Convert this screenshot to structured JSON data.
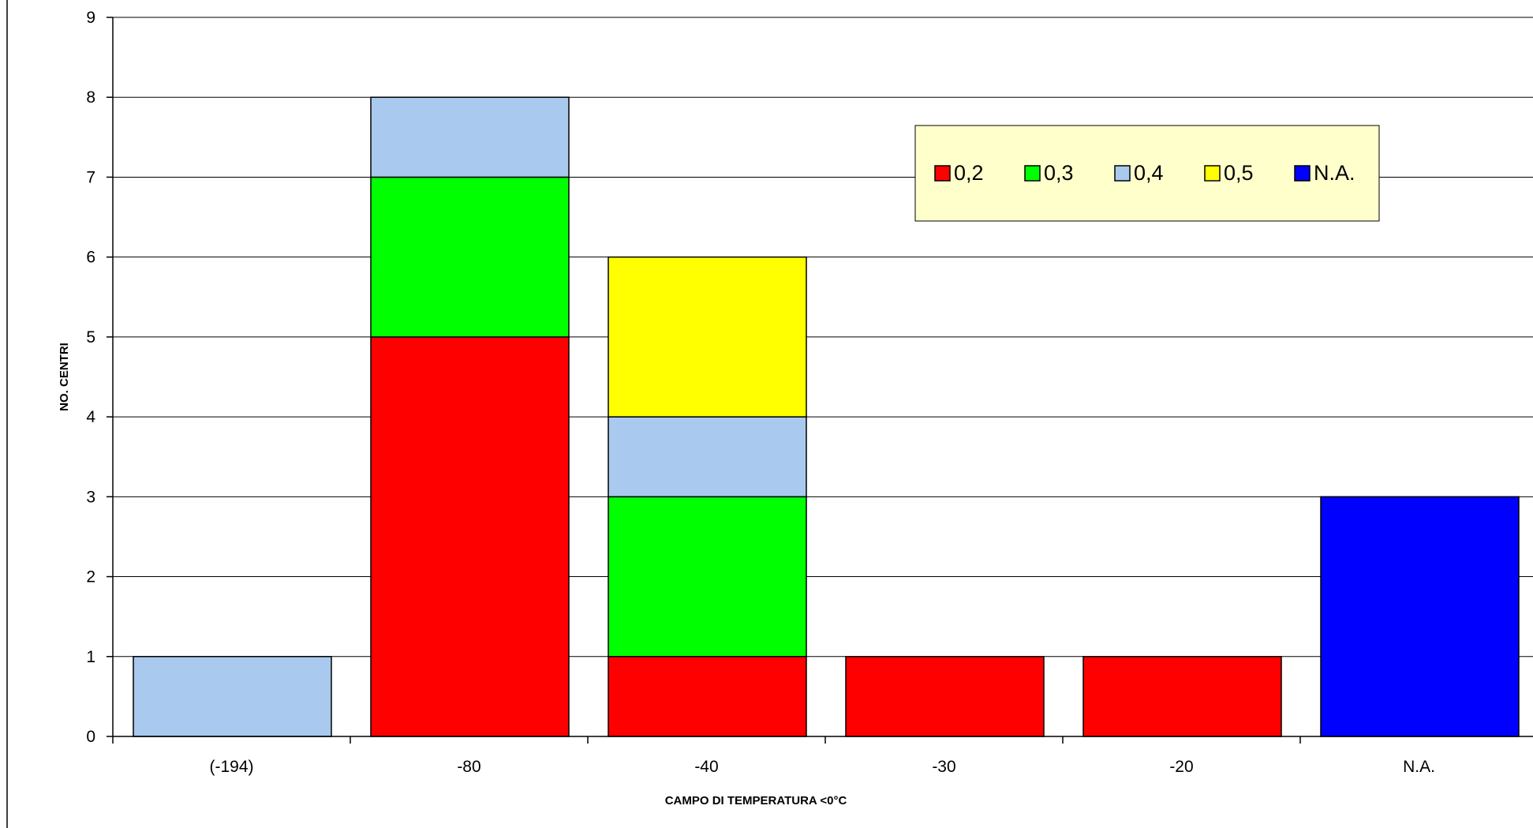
{
  "chart_data": {
    "type": "bar",
    "stacked": true,
    "categories": [
      "(-194)",
      "-80",
      "-40",
      "-30",
      "-20",
      "N.A."
    ],
    "series": [
      {
        "name": "0,2",
        "color": "#ff0000",
        "values": [
          0,
          5,
          1,
          1,
          1,
          0
        ]
      },
      {
        "name": "0,3",
        "color": "#00ff00",
        "values": [
          0,
          2,
          2,
          0,
          0,
          0
        ]
      },
      {
        "name": "0,4",
        "color": "#a9c9ee",
        "values": [
          1,
          1,
          1,
          0,
          0,
          0
        ]
      },
      {
        "name": "0,5",
        "color": "#ffff00",
        "values": [
          0,
          0,
          2,
          0,
          0,
          0
        ]
      },
      {
        "name": "N.A.",
        "color": "#0000ff",
        "values": [
          0,
          0,
          0,
          0,
          0,
          3
        ]
      }
    ],
    "xlabel": "CAMPO DI TEMPERATURA <0°C",
    "ylabel": "NO. CENTRI",
    "ylim": [
      0,
      9
    ],
    "yticks": [
      0,
      1,
      2,
      3,
      4,
      5,
      6,
      7,
      8,
      9
    ],
    "grid": true,
    "legend": {
      "placement": "top-right",
      "background": "#ffffcc"
    }
  }
}
